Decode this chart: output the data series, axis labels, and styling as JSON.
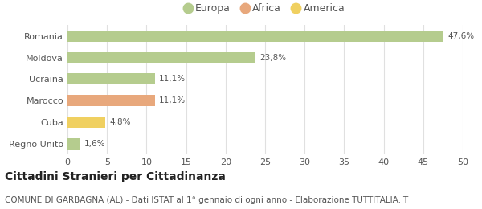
{
  "categories": [
    "Romania",
    "Moldova",
    "Ucraina",
    "Marocco",
    "Cuba",
    "Regno Unito"
  ],
  "values": [
    47.6,
    23.8,
    11.1,
    11.1,
    4.8,
    1.6
  ],
  "labels": [
    "47,6%",
    "23,8%",
    "11,1%",
    "11,1%",
    "4,8%",
    "1,6%"
  ],
  "colors": [
    "#b5cc8e",
    "#b5cc8e",
    "#b5cc8e",
    "#e8a87c",
    "#f0d060",
    "#b5cc8e"
  ],
  "legend": [
    {
      "label": "Europa",
      "color": "#b5cc8e"
    },
    {
      "label": "Africa",
      "color": "#e8a87c"
    },
    {
      "label": "America",
      "color": "#f0d060"
    }
  ],
  "xlim": [
    0,
    50
  ],
  "xticks": [
    0,
    5,
    10,
    15,
    20,
    25,
    30,
    35,
    40,
    45,
    50
  ],
  "title": "Cittadini Stranieri per Cittadinanza",
  "subtitle": "COMUNE DI GARBAGNA (AL) - Dati ISTAT al 1° gennaio di ogni anno - Elaborazione TUTTITALIA.IT",
  "background_color": "#ffffff",
  "bar_height": 0.52,
  "title_fontsize": 10,
  "subtitle_fontsize": 7.5,
  "label_fontsize": 7.5,
  "tick_fontsize": 8,
  "legend_fontsize": 9,
  "text_color": "#555555",
  "title_color": "#222222",
  "grid_color": "#e0e0e0"
}
